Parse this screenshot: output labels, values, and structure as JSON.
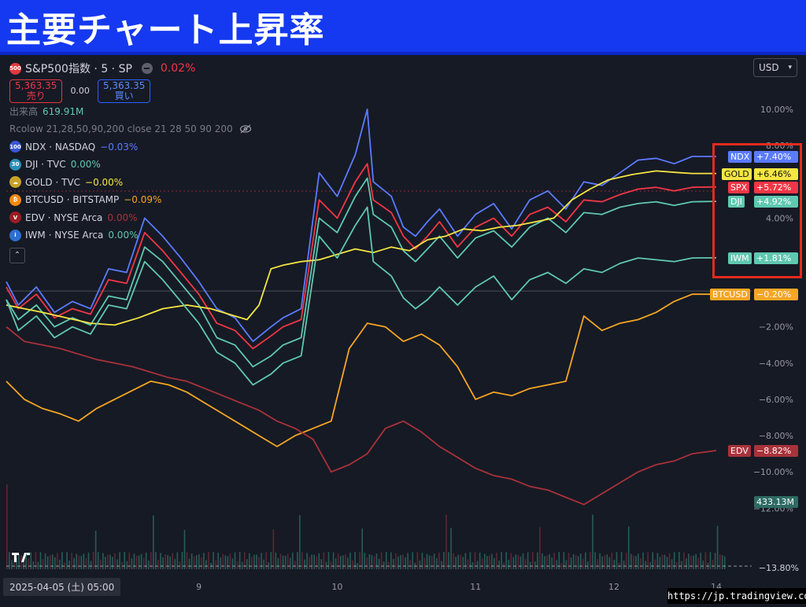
{
  "banner": {
    "title": "主要チャート上昇率"
  },
  "symbol": {
    "badge": "500",
    "name": "S&P500指数 · 5 · SP",
    "change": "0.02%"
  },
  "quote": {
    "sell_price": "5,363.35",
    "sell_label": "売り",
    "spread": "0.00",
    "buy_price": "5,363.35",
    "buy_label": "買い"
  },
  "volume_label": {
    "label": "出来高",
    "value": "619.91M"
  },
  "indicator": {
    "text": "Rcolow 21,28,50,90,200 close 21 28 50 90 200"
  },
  "currency": {
    "label": "USD"
  },
  "comparisons": [
    {
      "icon_text": "100",
      "name": "NDX · NASDAQ",
      "change": "−0.03%",
      "color": "#5b7bff",
      "icon_color": "#3a56d4"
    },
    {
      "icon_text": "30",
      "name": "DJI · TVC",
      "change": "0.00%",
      "color": "#5fc8b0",
      "icon_color": "#2a8fb8"
    },
    {
      "icon_text": "☁",
      "name": "GOLD · TVC",
      "change": "−0.00%",
      "color": "#f5e642",
      "icon_color": "#c9a227"
    },
    {
      "icon_text": "₿",
      "name": "BTCUSD · BITSTAMP",
      "change": "−0.09%",
      "color": "#f5a623",
      "icon_color": "#f28a0f"
    },
    {
      "icon_text": "V",
      "name": "EDV · NYSE Arca",
      "change": "0.00%",
      "color": "#a8323a",
      "icon_color": "#9b1c24"
    },
    {
      "icon_text": "i",
      "name": "IWM · NYSE Arca",
      "change": "0.00%",
      "color": "#5fc8b0",
      "icon_color": "#2d6fd1"
    }
  ],
  "chart_data": {
    "type": "line",
    "ylabel": "",
    "y_ticks": [
      "10.00%",
      "8.00%",
      "4.00%",
      "−2.00%",
      "−4.00%",
      "−6.00%",
      "−8.00%",
      "−10.00%",
      "−12.00%"
    ],
    "y_tick_values": [
      10,
      8,
      4,
      -2,
      -4,
      -6,
      -8,
      -10,
      -12
    ],
    "ylim": [
      -13.8,
      11.5
    ],
    "x_ticks": [
      "9",
      "10",
      "11",
      "12",
      "14"
    ],
    "x_tick_positions": [
      1.9,
      3.05,
      4.2,
      5.35,
      6.2
    ],
    "xlim": [
      0.3,
      6.2
    ],
    "grid": false,
    "series": [
      {
        "name": "NDX",
        "color": "#5b7bff",
        "label": "+7.40%",
        "last": 7.4,
        "x": [
          0.3,
          0.4,
          0.55,
          0.7,
          0.85,
          1.0,
          1.15,
          1.3,
          1.45,
          1.6,
          1.75,
          1.9,
          2.05,
          2.2,
          2.35,
          2.5,
          2.6,
          2.75,
          2.9,
          3.05,
          3.2,
          3.3,
          3.35,
          3.5,
          3.6,
          3.7,
          3.8,
          3.9,
          4.05,
          4.2,
          4.35,
          4.5,
          4.65,
          4.8,
          4.95,
          5.1,
          5.25,
          5.4,
          5.55,
          5.7,
          5.85,
          6.0,
          6.2
        ],
        "y": [
          0.5,
          -0.8,
          0.2,
          -1.2,
          -0.6,
          -1.0,
          1.2,
          1.0,
          4.0,
          3.0,
          1.8,
          0.5,
          -1.0,
          -1.5,
          -2.8,
          -2.0,
          -1.5,
          -1.0,
          6.5,
          5.2,
          7.5,
          10.0,
          6.0,
          5.2,
          3.5,
          3.0,
          3.8,
          4.5,
          3.0,
          4.2,
          4.8,
          3.4,
          5.0,
          5.5,
          4.5,
          6.0,
          5.8,
          6.5,
          7.2,
          7.3,
          7.0,
          7.4,
          7.4
        ]
      },
      {
        "name": "SPX",
        "color": "#f23645",
        "label": "+5.72%",
        "last": 5.72,
        "x": [
          0.3,
          0.4,
          0.55,
          0.7,
          0.85,
          1.0,
          1.15,
          1.3,
          1.45,
          1.6,
          1.75,
          1.9,
          2.05,
          2.2,
          2.35,
          2.5,
          2.6,
          2.75,
          2.9,
          3.05,
          3.2,
          3.3,
          3.35,
          3.5,
          3.6,
          3.7,
          3.8,
          3.9,
          4.05,
          4.2,
          4.35,
          4.5,
          4.65,
          4.8,
          4.95,
          5.1,
          5.25,
          5.4,
          5.55,
          5.7,
          5.85,
          6.0,
          6.2
        ],
        "y": [
          0.2,
          -1.0,
          -0.2,
          -1.5,
          -1.0,
          -1.3,
          0.6,
          0.4,
          3.2,
          2.2,
          1.0,
          -0.2,
          -1.8,
          -2.2,
          -3.2,
          -2.5,
          -2.0,
          -1.6,
          5.0,
          4.0,
          6.0,
          7.0,
          5.0,
          4.3,
          3.0,
          2.3,
          3.0,
          3.8,
          2.4,
          3.5,
          4.0,
          3.0,
          4.2,
          4.6,
          3.8,
          5.0,
          4.9,
          5.3,
          5.6,
          5.7,
          5.5,
          5.7,
          5.72
        ]
      },
      {
        "name": "DJI",
        "color": "#5fc8b0",
        "label": "+4.92%",
        "last": 4.92,
        "x": [
          0.3,
          0.4,
          0.55,
          0.7,
          0.85,
          1.0,
          1.15,
          1.3,
          1.45,
          1.6,
          1.75,
          1.9,
          2.05,
          2.2,
          2.35,
          2.5,
          2.6,
          2.75,
          2.9,
          3.05,
          3.2,
          3.3,
          3.35,
          3.5,
          3.6,
          3.7,
          3.8,
          3.9,
          4.05,
          4.2,
          4.35,
          4.5,
          4.65,
          4.8,
          4.95,
          5.1,
          5.25,
          5.4,
          5.55,
          5.7,
          5.85,
          6.0,
          6.2
        ],
        "y": [
          -0.5,
          -1.6,
          -0.8,
          -2.0,
          -1.5,
          -1.9,
          -0.3,
          -0.5,
          2.4,
          1.6,
          0.4,
          -0.8,
          -2.6,
          -3.0,
          -4.2,
          -3.6,
          -3.0,
          -2.6,
          4.0,
          3.2,
          5.2,
          6.2,
          4.2,
          3.5,
          2.2,
          1.6,
          2.3,
          3.0,
          1.8,
          2.9,
          3.3,
          2.4,
          3.5,
          4.0,
          3.2,
          4.3,
          4.2,
          4.6,
          4.8,
          4.9,
          4.7,
          4.9,
          4.92
        ]
      },
      {
        "name": "GOLD",
        "color": "#f5e642",
        "label": "+6.46%",
        "last": 6.46,
        "x": [
          0.3,
          0.45,
          0.6,
          0.8,
          1.0,
          1.2,
          1.4,
          1.6,
          1.8,
          2.0,
          2.15,
          2.3,
          2.4,
          2.5,
          2.6,
          2.75,
          2.9,
          3.05,
          3.2,
          3.35,
          3.5,
          3.65,
          3.8,
          3.95,
          4.1,
          4.25,
          4.4,
          4.55,
          4.7,
          4.85,
          5.0,
          5.15,
          5.3,
          5.5,
          5.7,
          5.9,
          6.0,
          6.2
        ],
        "y": [
          -0.8,
          -1.0,
          -1.2,
          -1.5,
          -1.8,
          -1.9,
          -1.5,
          -1.0,
          -0.8,
          -1.0,
          -1.3,
          -1.6,
          -0.8,
          1.2,
          1.4,
          1.6,
          1.7,
          2.0,
          2.3,
          2.1,
          2.4,
          2.2,
          2.8,
          3.0,
          3.4,
          3.3,
          3.5,
          3.6,
          3.8,
          4.0,
          5.0,
          5.6,
          6.1,
          6.4,
          6.6,
          6.5,
          6.46,
          6.46
        ]
      },
      {
        "name": "IWM",
        "color": "#5fc8b0",
        "label": "+1.81%",
        "last": 1.81,
        "x": [
          0.3,
          0.4,
          0.55,
          0.7,
          0.85,
          1.0,
          1.15,
          1.3,
          1.45,
          1.6,
          1.75,
          1.9,
          2.05,
          2.2,
          2.35,
          2.5,
          2.6,
          2.75,
          2.9,
          3.05,
          3.2,
          3.3,
          3.35,
          3.5,
          3.6,
          3.7,
          3.8,
          3.9,
          4.05,
          4.2,
          4.35,
          4.5,
          4.65,
          4.8,
          4.95,
          5.1,
          5.25,
          5.4,
          5.55,
          5.7,
          5.85,
          6.0,
          6.2
        ],
        "y": [
          -0.5,
          -2.2,
          -1.4,
          -2.6,
          -2.0,
          -2.4,
          -0.8,
          -1.0,
          1.6,
          0.6,
          -0.6,
          -1.8,
          -3.4,
          -4.0,
          -5.2,
          -4.6,
          -4.0,
          -3.6,
          3.0,
          1.8,
          3.6,
          4.6,
          1.6,
          0.8,
          -0.4,
          -1.0,
          -0.5,
          0.2,
          -0.8,
          0.2,
          0.8,
          -0.5,
          0.6,
          1.0,
          0.4,
          1.2,
          1.0,
          1.5,
          1.8,
          1.7,
          1.6,
          1.8,
          1.81
        ]
      },
      {
        "name": "BTCUSD",
        "color": "#f5a623",
        "label": "−0.20%",
        "last": -0.2,
        "x": [
          0.3,
          0.45,
          0.6,
          0.75,
          0.9,
          1.05,
          1.2,
          1.35,
          1.5,
          1.65,
          1.8,
          1.95,
          2.1,
          2.25,
          2.4,
          2.55,
          2.7,
          2.85,
          3.0,
          3.15,
          3.3,
          3.45,
          3.6,
          3.75,
          3.9,
          4.05,
          4.2,
          4.35,
          4.5,
          4.65,
          4.8,
          4.95,
          5.1,
          5.25,
          5.4,
          5.55,
          5.7,
          5.85,
          6.0,
          6.2
        ],
        "y": [
          -5.0,
          -6.0,
          -6.5,
          -6.8,
          -7.2,
          -6.5,
          -6.0,
          -5.5,
          -5.0,
          -5.2,
          -5.6,
          -6.2,
          -6.8,
          -7.4,
          -8.0,
          -8.6,
          -8.0,
          -7.6,
          -7.2,
          -3.2,
          -1.8,
          -2.0,
          -2.8,
          -2.4,
          -3.0,
          -4.2,
          -6.0,
          -5.6,
          -5.8,
          -5.4,
          -5.2,
          -5.0,
          -1.4,
          -2.2,
          -1.8,
          -1.6,
          -1.2,
          -0.6,
          -0.2,
          -0.2
        ]
      },
      {
        "name": "EDV",
        "color": "#a8323a",
        "label": "−8.82%",
        "last": -8.82,
        "x": [
          0.3,
          0.45,
          0.6,
          0.75,
          0.9,
          1.05,
          1.2,
          1.35,
          1.5,
          1.65,
          1.8,
          1.95,
          2.1,
          2.25,
          2.4,
          2.55,
          2.7,
          2.85,
          3.0,
          3.15,
          3.3,
          3.45,
          3.6,
          3.75,
          3.9,
          4.05,
          4.2,
          4.35,
          4.5,
          4.65,
          4.8,
          4.95,
          5.1,
          5.25,
          5.4,
          5.55,
          5.7,
          5.85,
          6.0,
          6.2
        ],
        "y": [
          -2.0,
          -2.8,
          -3.0,
          -3.2,
          -3.5,
          -3.8,
          -4.0,
          -4.2,
          -4.5,
          -4.8,
          -5.0,
          -5.4,
          -5.8,
          -6.2,
          -6.6,
          -7.2,
          -7.6,
          -8.2,
          -10.0,
          -9.6,
          -9.0,
          -7.6,
          -7.2,
          -7.8,
          -8.6,
          -9.2,
          -9.8,
          -10.2,
          -10.4,
          -10.8,
          -11.0,
          -11.4,
          -11.8,
          -11.2,
          -10.6,
          -10.0,
          -9.6,
          -9.4,
          -9.0,
          -8.82
        ]
      }
    ],
    "volume_label": "433.13M",
    "bottom_value": "−13.80%",
    "zero_line": 0
  },
  "footer": {
    "date": "2025-04-05 (土)  05:00",
    "url": "https://jp.tradingview.com/"
  }
}
